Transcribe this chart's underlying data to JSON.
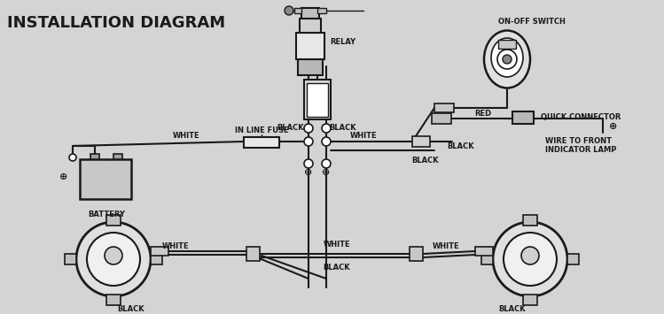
{
  "title": "INSTALLATION DIAGRAM",
  "bg_color": "#d4d4d4",
  "line_color": "#1a1a1a",
  "text_color": "#1a1a1a",
  "title_fontsize": 13,
  "label_fontsize": 6,
  "figsize": [
    7.49,
    3.55
  ],
  "dpi": 100,
  "labels": {
    "relay": "RELAY",
    "on_off_switch": "ON-OFF SWITCH",
    "in_line_fuse": "IN LINE FUSE",
    "battery": "BATTERY",
    "white1": "WHITE",
    "white2": "WHITE",
    "white3": "WHITE",
    "white4": "WHITE",
    "black1": "BLACK",
    "black2": "BLACK",
    "black3": "BLACK",
    "black4": "BLACK",
    "black5": "BLACK",
    "red": "RED",
    "quick_connector": "QUICK CONNECTOR",
    "wire_to_front": "WIRE TO FRONT\nINDICATOR LAMP"
  }
}
